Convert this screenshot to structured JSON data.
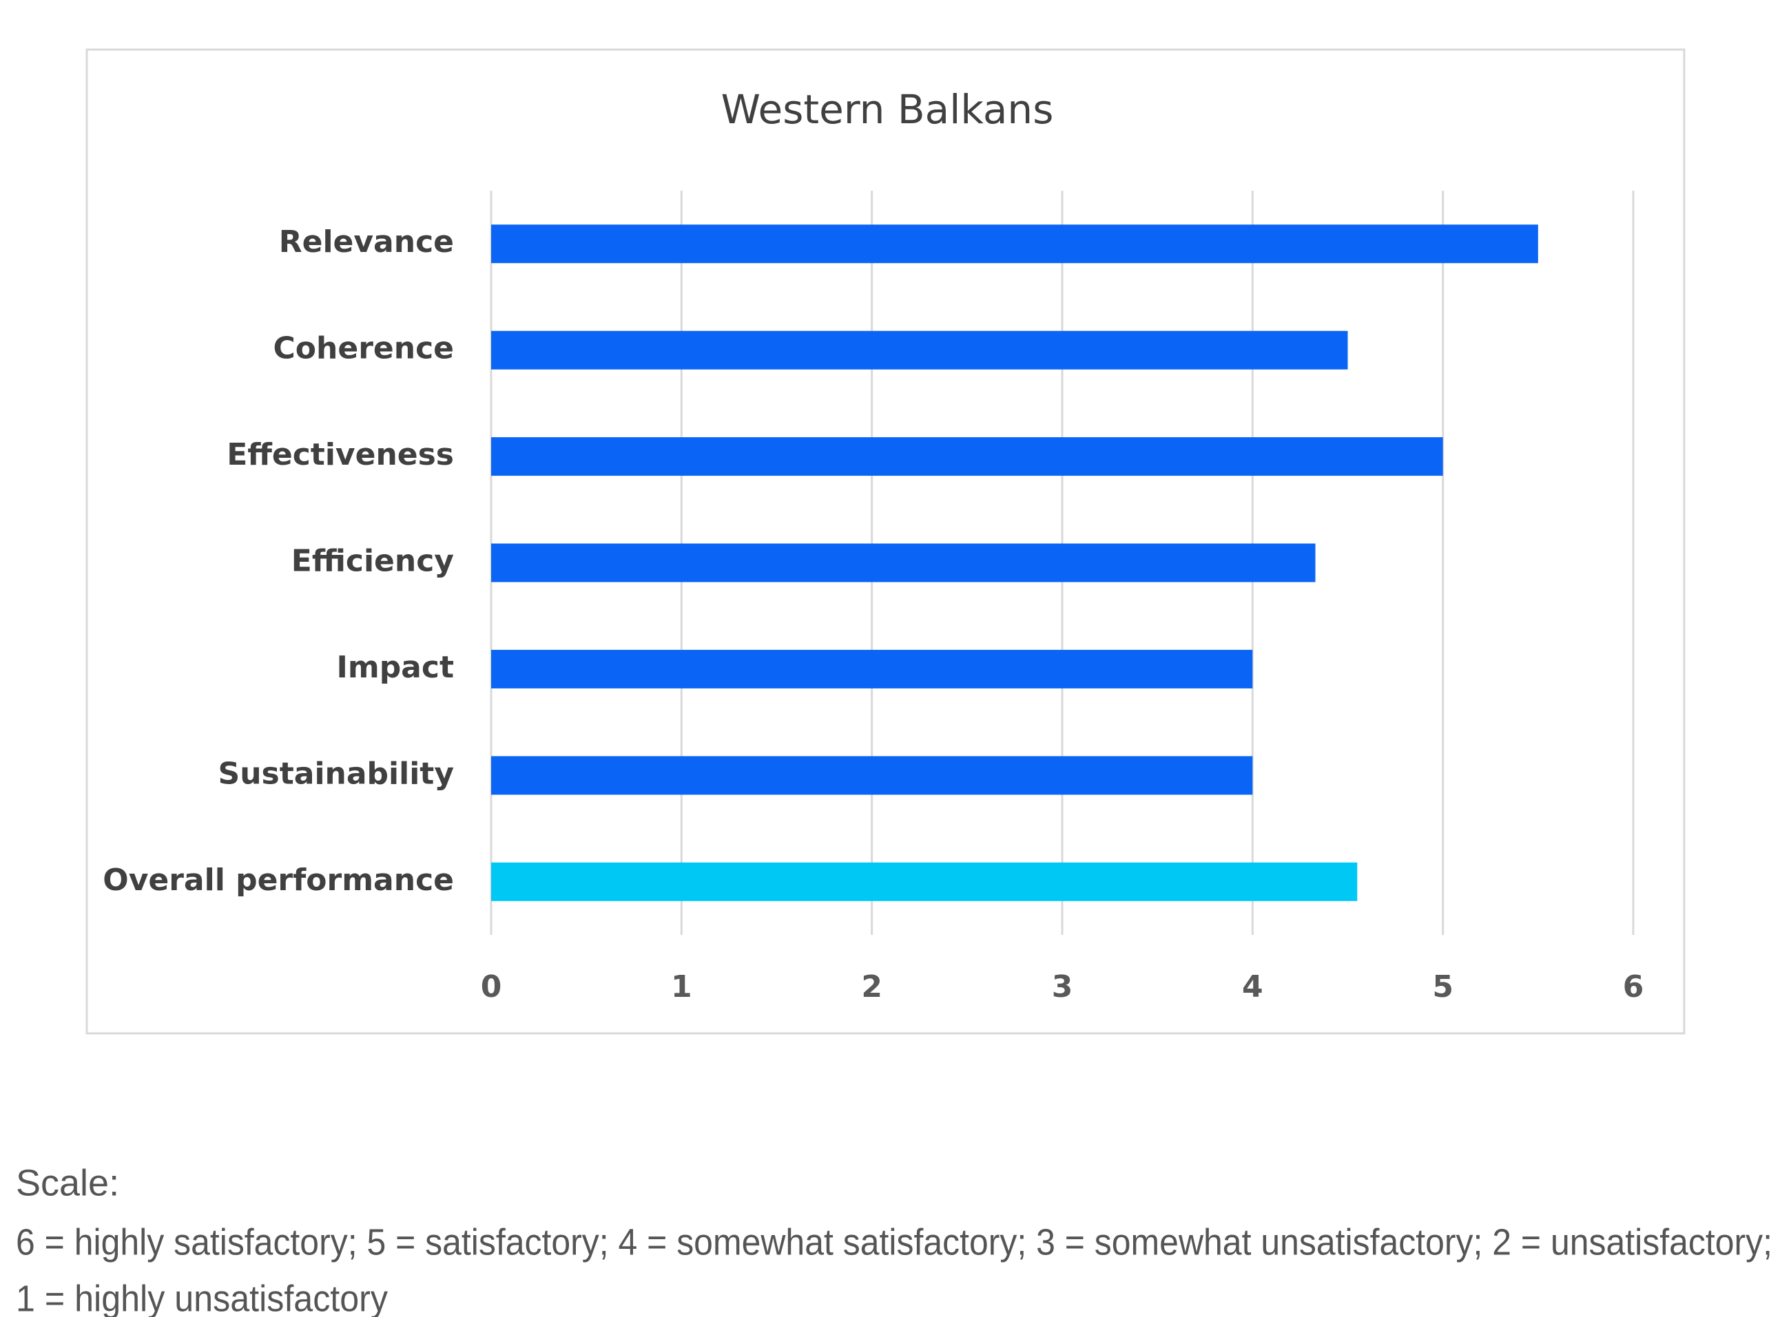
{
  "chart_data": {
    "type": "hbar",
    "title": "Western Balkans",
    "categories": [
      "Relevance",
      "Coherence",
      "Effectiveness",
      "Efficiency",
      "Impact",
      "Sustainability",
      "Overall performance"
    ],
    "values": [
      5.5,
      4.5,
      5,
      4.33,
      4,
      4,
      4.55
    ],
    "colors": [
      "#0a64f5",
      "#0a64f5",
      "#0a64f5",
      "#0a64f5",
      "#0a64f5",
      "#0a64f5",
      "#00c8f5"
    ],
    "xlim": [
      0,
      6
    ],
    "xticks": [
      0,
      1,
      2,
      3,
      4,
      5,
      6
    ],
    "grid": true
  },
  "notes": [
    "Scale:",
    "6 = highly satisfactory; 5 = satisfactory; 4 = somewhat satisfactory; 3 = somewhat unsatisfactory; 2 = unsatisfactory;",
    "1 = highly unsatisfactory"
  ]
}
